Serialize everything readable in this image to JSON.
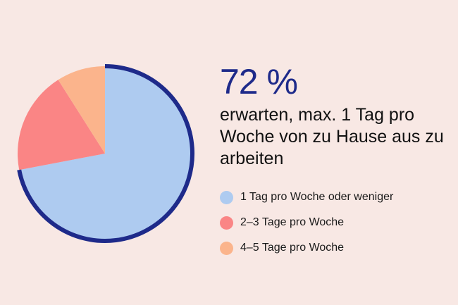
{
  "headline": "72 %",
  "subline": "erwarten, max. 1 Tag pro Woche von zu Hause aus zu arbeiten",
  "colors": {
    "background": "#f8e8e4",
    "outline": "#1e2a8a",
    "series": [
      "#aecbf0",
      "#fa8585",
      "#fbb48c"
    ]
  },
  "chart_data": {
    "type": "pie",
    "categories": [
      "1 Tag pro Woche oder weniger",
      "2–3 Tage pro Woche",
      "4–5 Tage pro Woche"
    ],
    "values": [
      72,
      19,
      9
    ],
    "unit": "%",
    "start_angle": "12 o'clock, clockwise",
    "legend_position": "right"
  }
}
